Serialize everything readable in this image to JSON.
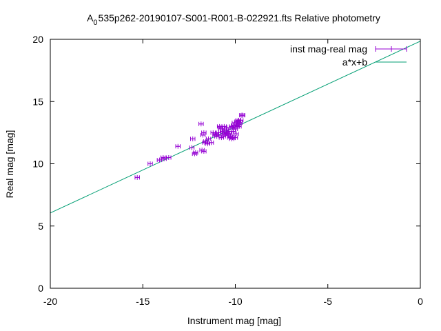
{
  "chart_data": {
    "type": "scatter",
    "title": {
      "prefix": "A",
      "subscript": "0",
      "rest": "535p262-20190107-S001-R001-B-022921.fts Relative photometry"
    },
    "xlabel": "Instrument mag [mag]",
    "ylabel": "Real mag [mag]",
    "xlim": [
      -20,
      0
    ],
    "ylim": [
      0,
      20
    ],
    "xticks": [
      -20,
      -15,
      -10,
      -5,
      0
    ],
    "xtick_labels": [
      "-20",
      "-15",
      "-10",
      "-5",
      "0"
    ],
    "yticks": [
      0,
      5,
      10,
      15,
      20
    ],
    "ytick_labels": [
      "0",
      "5",
      "10",
      "15",
      "20"
    ],
    "grid": false,
    "legend_position": "top-right",
    "colors": {
      "points": "#9400d3",
      "fit": "#009e73",
      "axes": "#000000"
    },
    "series": [
      {
        "name": "inst mag-real mag",
        "style": "points-with-xerrorbars",
        "xerr": 0.12,
        "x": [
          -15.3,
          -14.6,
          -14.1,
          -13.9,
          -13.85,
          -13.6,
          -13.1,
          -12.3,
          -12.35,
          -12.2,
          -12.15,
          -11.85,
          -11.8,
          -11.7,
          -11.75,
          -11.7,
          -11.6,
          -11.5,
          -11.65,
          -11.45,
          -11.3,
          -11.2,
          -11.1,
          -11.05,
          -10.9,
          -10.85,
          -10.8,
          -10.75,
          -10.7,
          -10.7,
          -10.65,
          -10.6,
          -10.6,
          -10.55,
          -10.5,
          -10.5,
          -10.45,
          -10.4,
          -10.35,
          -10.3,
          -10.3,
          -10.25,
          -10.2,
          -10.15,
          -10.15,
          -10.1,
          -10.05,
          -10.0,
          -10.0,
          -9.95,
          -9.95,
          -9.9,
          -9.9,
          -9.85,
          -9.8,
          -9.8,
          -9.75,
          -9.7,
          -9.65,
          -9.6,
          -10.8,
          -10.4,
          -10.6,
          -10.1,
          -11.0,
          -10.9,
          -10.2
        ],
        "y": [
          8.9,
          10.0,
          10.3,
          10.5,
          10.4,
          10.5,
          11.4,
          12.0,
          11.3,
          10.8,
          10.9,
          13.2,
          11.1,
          11.0,
          12.3,
          12.5,
          11.8,
          11.6,
          11.7,
          12.0,
          11.7,
          12.5,
          12.3,
          12.4,
          12.3,
          13.0,
          12.8,
          12.1,
          12.6,
          12.8,
          12.2,
          12.7,
          13.0,
          12.4,
          12.5,
          12.7,
          12.9,
          12.3,
          12.6,
          12.1,
          12.4,
          12.2,
          13.0,
          12.9,
          12.1,
          12.6,
          13.3,
          12.1,
          12.8,
          13.1,
          12.4,
          13.0,
          13.4,
          13.5,
          13.0,
          13.2,
          13.3,
          13.5,
          13.9,
          13.9,
          12.9,
          12.3,
          12.4,
          13.1,
          12.2,
          12.5,
          12.0
        ]
      },
      {
        "name": "a*x+b",
        "style": "line",
        "slope": 0.69,
        "intercept": 19.85,
        "x": [
          -20,
          0
        ],
        "y": [
          6.05,
          19.85
        ]
      }
    ]
  }
}
